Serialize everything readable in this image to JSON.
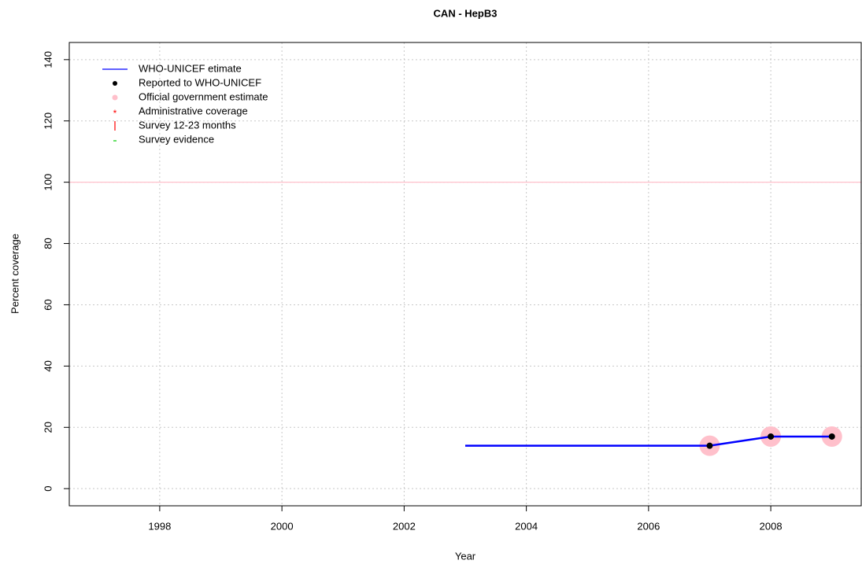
{
  "chart_data": {
    "type": "line",
    "title": "CAN  -  HepB3",
    "xlabel": "Year",
    "ylabel": "Percent coverage",
    "xlim": [
      1996.52,
      2009.48
    ],
    "ylim": [
      -5.6,
      145.6
    ],
    "xticks": [
      1998,
      2000,
      2002,
      2004,
      2006,
      2008
    ],
    "yticks": [
      0,
      20,
      40,
      60,
      80,
      100,
      120,
      140
    ],
    "grid": true,
    "legend": "top-left",
    "reference_line": {
      "value": 100,
      "color": "#ffc0cb"
    },
    "series": [
      {
        "name": "WHO-UNICEF etimate",
        "color": "#0000ff",
        "marker": "line",
        "x": [
          2003,
          2004,
          2005,
          2006,
          2007,
          2008,
          2009
        ],
        "values": [
          14,
          14,
          14,
          14,
          14,
          17,
          17
        ]
      },
      {
        "name": "Reported to WHO-UNICEF",
        "color": "#000000",
        "marker": "dot",
        "x": [
          2007,
          2008,
          2009
        ],
        "values": [
          14,
          17,
          17
        ]
      },
      {
        "name": "Official government estimate",
        "color": "#ffc0cb",
        "marker": "circle",
        "x": [
          2007,
          2008,
          2009
        ],
        "values": [
          14,
          17,
          17
        ]
      },
      {
        "name": "Administrative coverage",
        "color": "#ff0000",
        "marker": "star",
        "x": [],
        "values": []
      },
      {
        "name": "Survey 12-23 months",
        "color": "#ff0000",
        "marker": "bar",
        "x": [],
        "values": []
      },
      {
        "name": "Survey evidence",
        "color": "#00cc00",
        "marker": "dash",
        "x": [],
        "values": []
      }
    ]
  }
}
